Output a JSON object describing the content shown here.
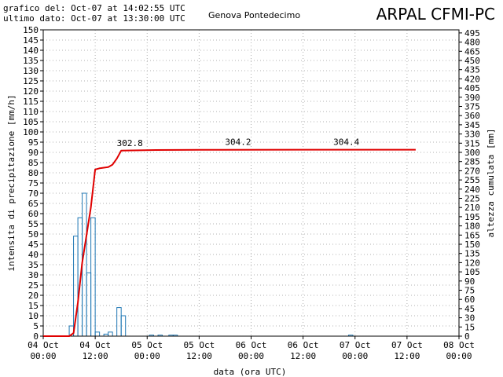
{
  "header": {
    "generated_line": "grafico del: Oct-07 at 14:02:55 UTC",
    "last_data_line": "ultimo dato: Oct-07 at 13:30:00 UTC",
    "station": "Genova Pontedecimo",
    "brand": "ARPAL CFMI-PC"
  },
  "chart_data": {
    "type": "bar+line",
    "xlabel": "data (ora UTC)",
    "ylabel_left": "intensita di precipitazione [mm/h]",
    "ylabel_right": "altezza cumulata [mm]",
    "x_unit": "hours since 04 Oct 00:00 UTC",
    "x_ticks": [
      {
        "h": 0,
        "d": "04 Oct",
        "t": "00:00"
      },
      {
        "h": 12,
        "d": "04 Oct",
        "t": "12:00"
      },
      {
        "h": 24,
        "d": "05 Oct",
        "t": "00:00"
      },
      {
        "h": 36,
        "d": "05 Oct",
        "t": "12:00"
      },
      {
        "h": 48,
        "d": "06 Oct",
        "t": "00:00"
      },
      {
        "h": 60,
        "d": "06 Oct",
        "t": "12:00"
      },
      {
        "h": 72,
        "d": "07 Oct",
        "t": "00:00"
      },
      {
        "h": 84,
        "d": "07 Oct",
        "t": "12:00"
      },
      {
        "h": 96,
        "d": "08 Oct",
        "t": "00:00"
      }
    ],
    "x_range": [
      0,
      96
    ],
    "ylim_left": [
      0,
      150
    ],
    "ylim_right": [
      0,
      500
    ],
    "left_ticks_step": 5,
    "right_ticks_step": 15,
    "grid": true,
    "intensity_bars": {
      "name": "intensita di precipitazione",
      "color": "#1f77b4",
      "bar_width_h": 1,
      "points": [
        [
          6.5,
          5
        ],
        [
          7.5,
          49
        ],
        [
          8.5,
          58
        ],
        [
          9.5,
          70
        ],
        [
          10.5,
          31
        ],
        [
          11.5,
          58
        ],
        [
          12.5,
          2
        ],
        [
          14.5,
          1
        ],
        [
          15.5,
          2
        ],
        [
          17.5,
          14
        ],
        [
          18.5,
          10
        ],
        [
          25,
          0.5
        ],
        [
          27,
          0.5
        ],
        [
          29.5,
          0.5
        ],
        [
          30.5,
          0.5
        ],
        [
          71,
          0.5
        ]
      ]
    },
    "cumulative_line": {
      "name": "altezza cumulata",
      "color": "#e00000",
      "points": [
        [
          0,
          0
        ],
        [
          6,
          0
        ],
        [
          7,
          5
        ],
        [
          8,
          55
        ],
        [
          9,
          120
        ],
        [
          10,
          165
        ],
        [
          11,
          210
        ],
        [
          12,
          272
        ],
        [
          13,
          274
        ],
        [
          14,
          275
        ],
        [
          15,
          276
        ],
        [
          16,
          280
        ],
        [
          17,
          290
        ],
        [
          18,
          302.8
        ],
        [
          26,
          303.8
        ],
        [
          40,
          304.2
        ],
        [
          86,
          304.4
        ]
      ]
    },
    "annotations": [
      {
        "x": 20,
        "y": 302.8,
        "text": "302.8"
      },
      {
        "x": 45,
        "y": 304.2,
        "text": "304.2"
      },
      {
        "x": 70,
        "y": 304.4,
        "text": "304.4"
      }
    ]
  }
}
